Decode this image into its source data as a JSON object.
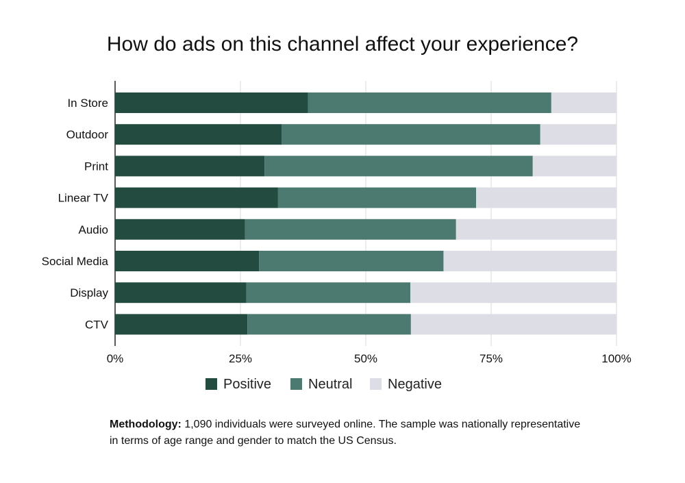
{
  "chart_data": {
    "type": "bar",
    "orientation": "horizontal",
    "stacked": true,
    "title": "How do ads on this channel affect your experience?",
    "categories": [
      "In Store",
      "Outdoor",
      "Print",
      "Linear TV",
      "Audio",
      "Social Media",
      "Display",
      "CTV"
    ],
    "series": [
      {
        "name": "Positive",
        "color": "#234b3f",
        "values": [
          38.5,
          33.2,
          29.8,
          32.5,
          25.9,
          28.7,
          26.2,
          26.4
        ]
      },
      {
        "name": "Neutral",
        "color": "#4c7a70",
        "values": [
          48.5,
          51.6,
          53.5,
          39.5,
          42.1,
          36.8,
          32.7,
          32.6
        ]
      },
      {
        "name": "Negative",
        "color": "#dddde6",
        "values": [
          13.0,
          15.2,
          16.7,
          28.0,
          32.0,
          34.5,
          41.1,
          41.0
        ]
      }
    ],
    "xlim": [
      0,
      100
    ],
    "xticks": [
      "0%",
      "25%",
      "50%",
      "75%",
      "100%"
    ],
    "xtick_values": [
      0,
      25,
      50,
      75,
      100
    ],
    "grid": true,
    "legend_position": "bottom"
  },
  "methodology": {
    "label": "Methodology:",
    "text": " 1,090 individuals were surveyed online. The sample was nationally representative in terms of age range and gender to match the US Census."
  }
}
